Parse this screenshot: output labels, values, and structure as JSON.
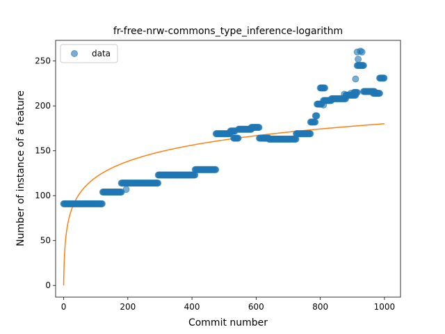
{
  "chart_data": {
    "type": "scatter",
    "title": "fr-free-nrw-commons_type_inference-logarithm",
    "xlabel": "Commit number",
    "ylabel": "Number of instance of a feature",
    "xlim": [
      -25,
      1050
    ],
    "ylim": [
      -13,
      273
    ],
    "xticks": [
      0,
      200,
      400,
      600,
      800,
      1000
    ],
    "yticks": [
      0,
      50,
      100,
      150,
      200,
      250
    ],
    "legend": {
      "placement": "top-left",
      "entries": [
        "data"
      ]
    },
    "grid": false,
    "colors": {
      "data": "#1f77b4",
      "fit": "#ff7f0e"
    },
    "series": [
      {
        "name": "data",
        "kind": "scatter",
        "segments": [
          {
            "x_start": 0,
            "x_end": 120,
            "y": 91
          },
          {
            "x_start": 122,
            "x_end": 180,
            "y": 104
          },
          {
            "x_start": 180,
            "x_end": 295,
            "y": 114
          },
          {
            "x_start": 295,
            "x_end": 410,
            "y": 123
          },
          {
            "x_start": 410,
            "x_end": 475,
            "y": 129
          },
          {
            "x_start": 475,
            "x_end": 520,
            "y": 169
          },
          {
            "x_start": 520,
            "x_end": 535,
            "y": 172
          },
          {
            "x_start": 530,
            "x_end": 545,
            "y": 164
          },
          {
            "x_start": 545,
            "x_end": 585,
            "y": 174
          },
          {
            "x_start": 585,
            "x_end": 610,
            "y": 176
          },
          {
            "x_start": 610,
            "x_end": 640,
            "y": 164
          },
          {
            "x_start": 640,
            "x_end": 725,
            "y": 163
          },
          {
            "x_start": 725,
            "x_end": 770,
            "y": 169
          },
          {
            "x_start": 770,
            "x_end": 785,
            "y": 182
          },
          {
            "x_start": 785,
            "x_end": 790,
            "y": 189
          },
          {
            "x_start": 790,
            "x_end": 805,
            "y": 202
          },
          {
            "x_start": 800,
            "x_end": 815,
            "y": 220
          },
          {
            "x_start": 810,
            "x_end": 835,
            "y": 206
          },
          {
            "x_start": 835,
            "x_end": 880,
            "y": 208
          },
          {
            "x_start": 880,
            "x_end": 910,
            "y": 212
          },
          {
            "x_start": 905,
            "x_end": 915,
            "y": 215
          },
          {
            "x_start": 915,
            "x_end": 935,
            "y": 245
          },
          {
            "x_start": 935,
            "x_end": 970,
            "y": 216
          },
          {
            "x_start": 965,
            "x_end": 985,
            "y": 214
          },
          {
            "x_start": 985,
            "x_end": 1000,
            "y": 231
          }
        ],
        "extra_points": [
          {
            "x": 195,
            "y": 107
          },
          {
            "x": 810,
            "y": 201
          },
          {
            "x": 910,
            "y": 230
          },
          {
            "x": 915,
            "y": 260
          },
          {
            "x": 918,
            "y": 252
          },
          {
            "x": 925,
            "y": 261
          },
          {
            "x": 930,
            "y": 260
          },
          {
            "x": 875,
            "y": 213
          },
          {
            "x": 895,
            "y": 214
          }
        ]
      },
      {
        "kind": "line",
        "function": "a*log(x+1)",
        "a": 26.07,
        "x_range": [
          0,
          1000
        ]
      }
    ]
  }
}
